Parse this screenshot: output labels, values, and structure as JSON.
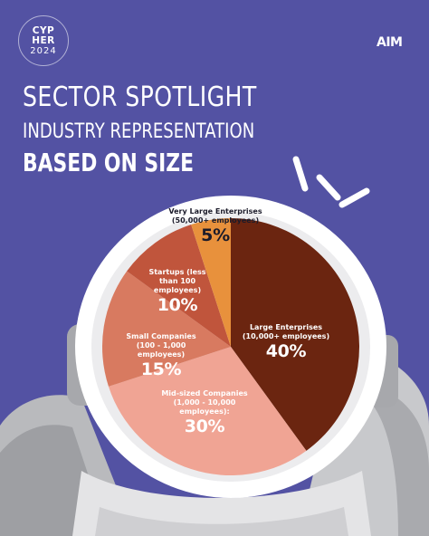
{
  "badge": {
    "line1": "CYP",
    "line2": "HER",
    "line3": "2024"
  },
  "logo": "AIM",
  "headline": {
    "title": "SECTOR SPOTLIGHT",
    "subtitle": "INDUSTRY REPRESENTATION",
    "emphasis": "BASED ON SIZE"
  },
  "colors": {
    "background": "#5352a3",
    "helmet_rim": "#ffffff",
    "suit_gray": "#b9babd",
    "suit_light": "#e4e4e6"
  },
  "chart_data": {
    "type": "pie",
    "title": "",
    "slices": [
      {
        "label_line1": "Large Enterprises",
        "label_line2": "(10,000+ employees)",
        "value": 40,
        "display": "40%",
        "color": "#6b2510"
      },
      {
        "label_line1": "Mid-sized Companies",
        "label_line2": "(1,000 - 10,000 employees):",
        "value": 30,
        "display": "30%",
        "color": "#f0a494"
      },
      {
        "label_line1": "Small Companies",
        "label_line2": "(100 - 1,000 employees)",
        "value": 15,
        "display": "15%",
        "color": "#d87a60"
      },
      {
        "label_line1": "Startups (less",
        "label_line2": "than 100 employees)",
        "value": 10,
        "display": "10%",
        "color": "#c0553c"
      },
      {
        "label_line1": "Very Large Enterprises",
        "label_line2": "(50,000+ employees)",
        "value": 5,
        "display": "5%",
        "color": "#e8913c"
      }
    ],
    "start_angle_deg": 0,
    "direction": "clockwise"
  }
}
